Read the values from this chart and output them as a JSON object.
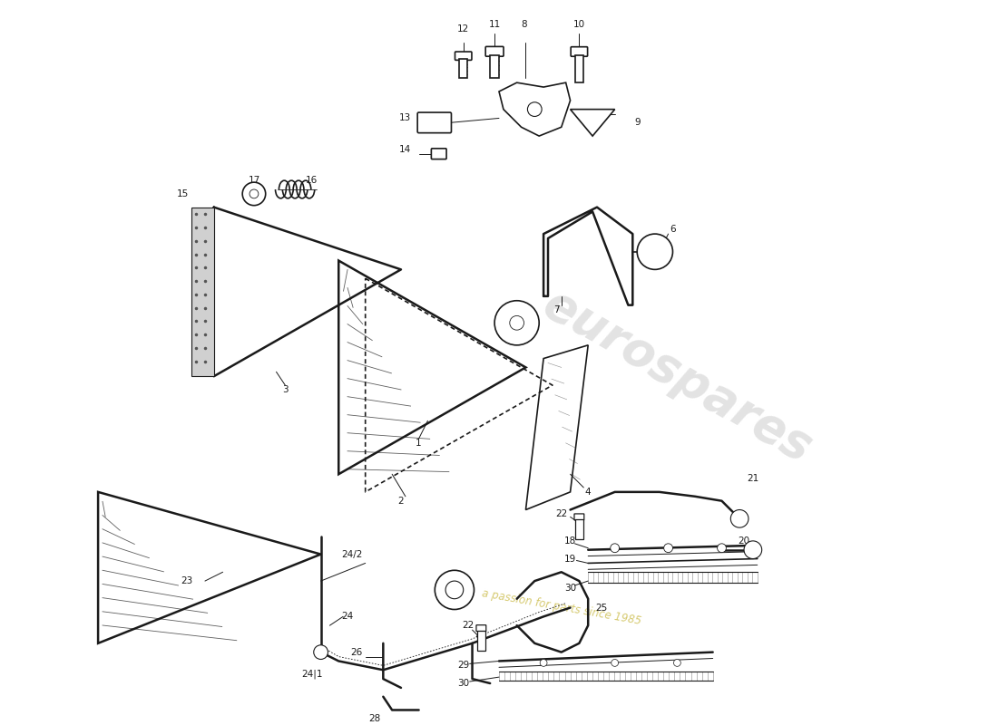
{
  "bg_color": "#ffffff",
  "line_color": "#1a1a1a",
  "watermark_text1": "eurospares",
  "watermark_text2": "a passion for parts since 1985",
  "figsize": [
    11.0,
    8.0
  ],
  "dpi": 100
}
